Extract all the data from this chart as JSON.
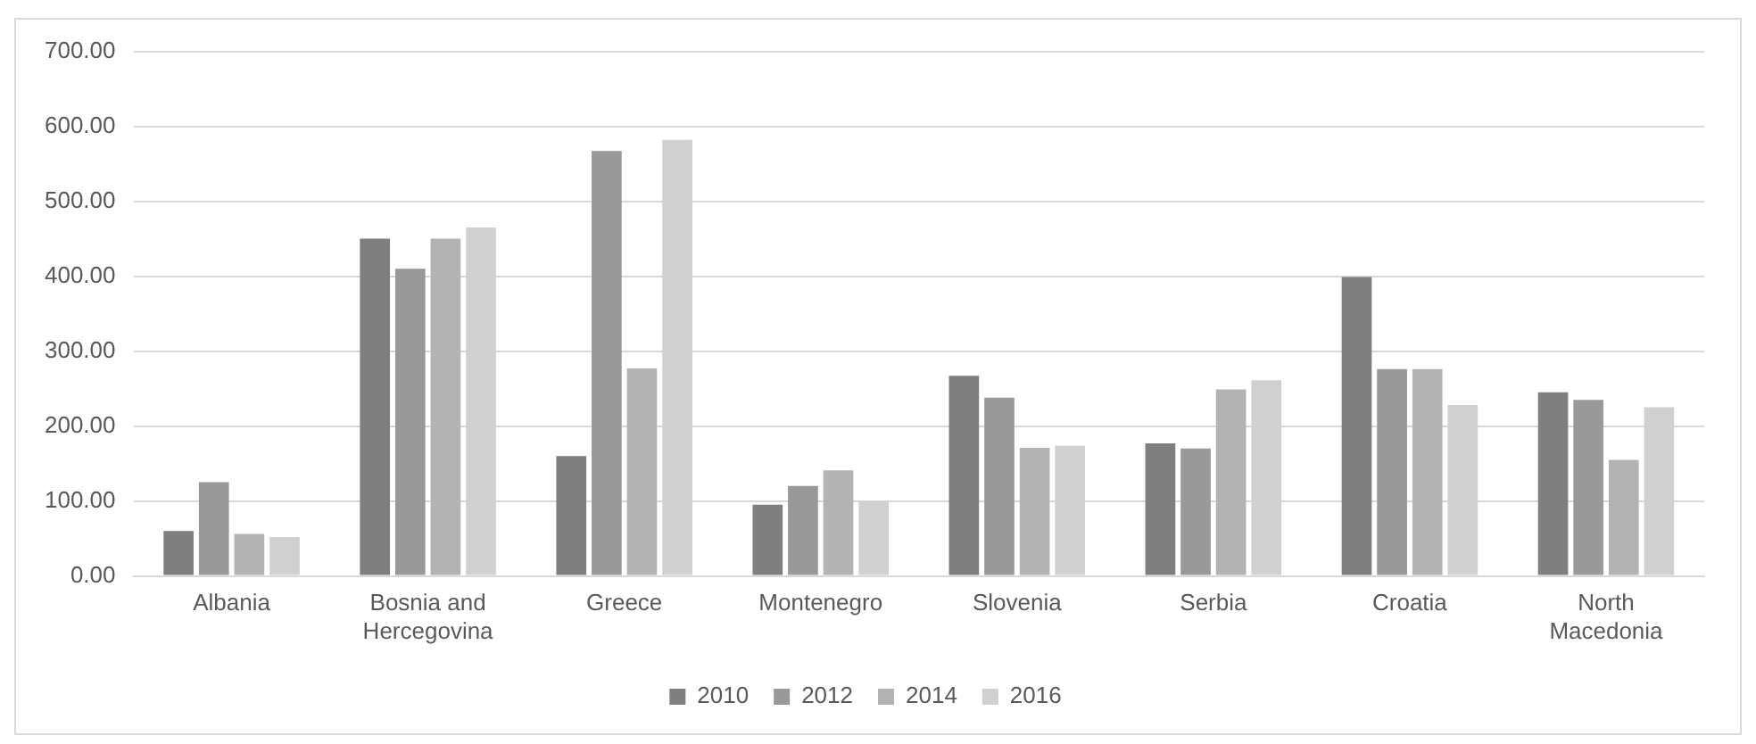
{
  "chart_data": {
    "type": "bar",
    "categories": [
      "Albania",
      "Bosnia and Hercegovina",
      "Greece",
      "Montenegro",
      "Slovenia",
      "Serbia",
      "Croatia",
      "North Macedonia"
    ],
    "series": [
      {
        "name": "2010",
        "color": "#7f7f7f",
        "values": [
          60,
          450,
          160,
          95,
          267,
          177,
          399,
          245
        ]
      },
      {
        "name": "2012",
        "color": "#999999",
        "values": [
          125,
          410,
          567,
          120,
          238,
          170,
          276,
          235
        ]
      },
      {
        "name": "2014",
        "color": "#b3b3b3",
        "values": [
          56,
          450,
          277,
          141,
          171,
          249,
          276,
          155
        ]
      },
      {
        "name": "2016",
        "color": "#d0d0d0",
        "values": [
          52,
          465,
          582,
          100,
          174,
          261,
          228,
          225
        ]
      }
    ],
    "ylim": [
      0,
      700
    ],
    "yticks": [
      {
        "value": 0,
        "label": "0.00"
      },
      {
        "value": 100,
        "label": "100.00"
      },
      {
        "value": 200,
        "label": "200.00"
      },
      {
        "value": 300,
        "label": "300.00"
      },
      {
        "value": 400,
        "label": "400.00"
      },
      {
        "value": 500,
        "label": "500.00"
      },
      {
        "value": 600,
        "label": "600.00"
      },
      {
        "value": 700,
        "label": "700.00"
      }
    ],
    "grid": "y",
    "legend": "bottom"
  }
}
